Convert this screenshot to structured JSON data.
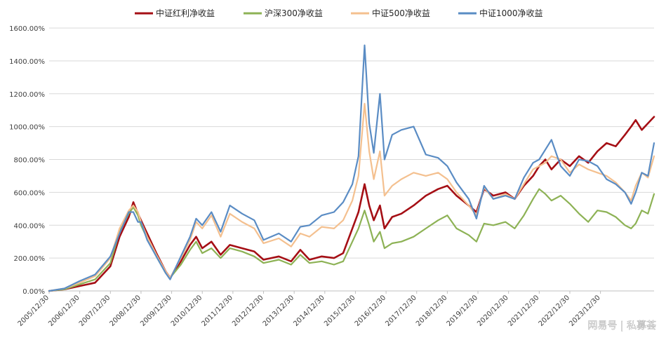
{
  "watermark": "网易号 | 私募荟",
  "chart_data": {
    "type": "line",
    "title": "",
    "xlabel": "",
    "ylabel": "",
    "ylim": [
      0,
      1600
    ],
    "y_ticks": [
      "0.00%",
      "200.00%",
      "400.00%",
      "600.00%",
      "800.00%",
      "1000.00%",
      "1200.00%",
      "1400.00%",
      "1600.00%"
    ],
    "y_values": [
      0,
      200,
      400,
      600,
      800,
      1000,
      1200,
      1400,
      1600
    ],
    "x_ticks": [
      "2005/12/30",
      "2006/12/30",
      "2007/12/30",
      "2008/12/30",
      "2009/12/30",
      "2010/12/30",
      "2011/12/30",
      "2012/12/30",
      "2013/12/30",
      "2014/12/30",
      "2015/12/30",
      "2016/12/30",
      "2017/12/30",
      "2018/12/30",
      "2019/12/30",
      "2020/12/30",
      "2021/12/30",
      "2022/12/30",
      "2023/12/30"
    ],
    "x_start": 2005.0,
    "x_end": 2024.75,
    "grid": true,
    "legend_position": "top",
    "series": [
      {
        "name": "中证红利净收益",
        "color": "#a50f15",
        "points": [
          [
            2005.0,
            0
          ],
          [
            2005.5,
            10
          ],
          [
            2006.0,
            30
          ],
          [
            2006.5,
            50
          ],
          [
            2007.0,
            150
          ],
          [
            2007.3,
            330
          ],
          [
            2007.6,
            450
          ],
          [
            2007.75,
            540
          ],
          [
            2007.9,
            470
          ],
          [
            2008.0,
            430
          ],
          [
            2008.2,
            350
          ],
          [
            2008.5,
            230
          ],
          [
            2008.8,
            120
          ],
          [
            2008.95,
            80
          ],
          [
            2009.3,
            180
          ],
          [
            2009.6,
            280
          ],
          [
            2009.8,
            330
          ],
          [
            2010.0,
            260
          ],
          [
            2010.3,
            300
          ],
          [
            2010.6,
            220
          ],
          [
            2010.9,
            280
          ],
          [
            2011.3,
            260
          ],
          [
            2011.7,
            240
          ],
          [
            2012.0,
            190
          ],
          [
            2012.5,
            210
          ],
          [
            2012.9,
            180
          ],
          [
            2013.2,
            250
          ],
          [
            2013.5,
            190
          ],
          [
            2013.9,
            210
          ],
          [
            2014.3,
            200
          ],
          [
            2014.6,
            230
          ],
          [
            2014.9,
            380
          ],
          [
            2015.1,
            480
          ],
          [
            2015.3,
            650
          ],
          [
            2015.45,
            520
          ],
          [
            2015.6,
            430
          ],
          [
            2015.8,
            520
          ],
          [
            2015.95,
            380
          ],
          [
            2016.2,
            450
          ],
          [
            2016.5,
            470
          ],
          [
            2016.9,
            520
          ],
          [
            2017.3,
            580
          ],
          [
            2017.7,
            620
          ],
          [
            2018.0,
            640
          ],
          [
            2018.3,
            580
          ],
          [
            2018.7,
            520
          ],
          [
            2018.95,
            480
          ],
          [
            2019.2,
            620
          ],
          [
            2019.5,
            580
          ],
          [
            2019.9,
            600
          ],
          [
            2020.2,
            560
          ],
          [
            2020.5,
            640
          ],
          [
            2020.8,
            700
          ],
          [
            2021.0,
            760
          ],
          [
            2021.2,
            800
          ],
          [
            2021.4,
            740
          ],
          [
            2021.7,
            800
          ],
          [
            2022.0,
            760
          ],
          [
            2022.3,
            820
          ],
          [
            2022.6,
            780
          ],
          [
            2022.9,
            850
          ],
          [
            2023.2,
            900
          ],
          [
            2023.5,
            880
          ],
          [
            2023.8,
            950
          ],
          [
            2024.0,
            1000
          ],
          [
            2024.15,
            1040
          ],
          [
            2024.35,
            980
          ],
          [
            2024.55,
            1020
          ],
          [
            2024.75,
            1060
          ]
        ]
      },
      {
        "name": "沪深300净收益",
        "color": "#8db255",
        "points": [
          [
            2005.0,
            0
          ],
          [
            2005.5,
            10
          ],
          [
            2006.0,
            40
          ],
          [
            2006.5,
            70
          ],
          [
            2007.0,
            170
          ],
          [
            2007.3,
            360
          ],
          [
            2007.6,
            470
          ],
          [
            2007.75,
            510
          ],
          [
            2007.9,
            460
          ],
          [
            2008.0,
            400
          ],
          [
            2008.2,
            320
          ],
          [
            2008.5,
            210
          ],
          [
            2008.8,
            110
          ],
          [
            2008.95,
            80
          ],
          [
            2009.3,
            160
          ],
          [
            2009.6,
            250
          ],
          [
            2009.8,
            300
          ],
          [
            2010.0,
            230
          ],
          [
            2010.3,
            260
          ],
          [
            2010.6,
            200
          ],
          [
            2010.9,
            260
          ],
          [
            2011.3,
            240
          ],
          [
            2011.7,
            210
          ],
          [
            2012.0,
            170
          ],
          [
            2012.5,
            190
          ],
          [
            2012.9,
            160
          ],
          [
            2013.2,
            220
          ],
          [
            2013.5,
            170
          ],
          [
            2013.9,
            180
          ],
          [
            2014.3,
            160
          ],
          [
            2014.6,
            180
          ],
          [
            2014.9,
            300
          ],
          [
            2015.1,
            380
          ],
          [
            2015.3,
            490
          ],
          [
            2015.45,
            400
          ],
          [
            2015.6,
            300
          ],
          [
            2015.8,
            360
          ],
          [
            2015.95,
            260
          ],
          [
            2016.2,
            290
          ],
          [
            2016.5,
            300
          ],
          [
            2016.9,
            330
          ],
          [
            2017.3,
            380
          ],
          [
            2017.7,
            430
          ],
          [
            2018.0,
            460
          ],
          [
            2018.3,
            380
          ],
          [
            2018.7,
            340
          ],
          [
            2018.95,
            300
          ],
          [
            2019.2,
            410
          ],
          [
            2019.5,
            400
          ],
          [
            2019.9,
            420
          ],
          [
            2020.2,
            380
          ],
          [
            2020.5,
            460
          ],
          [
            2020.8,
            560
          ],
          [
            2021.0,
            620
          ],
          [
            2021.2,
            590
          ],
          [
            2021.4,
            550
          ],
          [
            2021.7,
            580
          ],
          [
            2022.0,
            530
          ],
          [
            2022.3,
            470
          ],
          [
            2022.6,
            420
          ],
          [
            2022.9,
            490
          ],
          [
            2023.2,
            480
          ],
          [
            2023.5,
            450
          ],
          [
            2023.8,
            400
          ],
          [
            2024.0,
            380
          ],
          [
            2024.15,
            410
          ],
          [
            2024.35,
            490
          ],
          [
            2024.55,
            470
          ],
          [
            2024.75,
            590
          ]
        ]
      },
      {
        "name": "中证500净收益",
        "color": "#f4c08f",
        "points": [
          [
            2005.0,
            0
          ],
          [
            2005.5,
            15
          ],
          [
            2006.0,
            50
          ],
          [
            2006.5,
            90
          ],
          [
            2007.0,
            200
          ],
          [
            2007.3,
            380
          ],
          [
            2007.6,
            490
          ],
          [
            2007.75,
            520
          ],
          [
            2007.9,
            480
          ],
          [
            2008.0,
            420
          ],
          [
            2008.2,
            330
          ],
          [
            2008.5,
            220
          ],
          [
            2008.8,
            120
          ],
          [
            2008.95,
            80
          ],
          [
            2009.3,
            200
          ],
          [
            2009.6,
            310
          ],
          [
            2009.8,
            420
          ],
          [
            2010.0,
            380
          ],
          [
            2010.3,
            460
          ],
          [
            2010.6,
            330
          ],
          [
            2010.9,
            470
          ],
          [
            2011.3,
            420
          ],
          [
            2011.7,
            380
          ],
          [
            2012.0,
            290
          ],
          [
            2012.5,
            320
          ],
          [
            2012.9,
            270
          ],
          [
            2013.2,
            350
          ],
          [
            2013.5,
            330
          ],
          [
            2013.9,
            390
          ],
          [
            2014.3,
            380
          ],
          [
            2014.6,
            430
          ],
          [
            2014.9,
            550
          ],
          [
            2015.1,
            700
          ],
          [
            2015.3,
            1140
          ],
          [
            2015.45,
            850
          ],
          [
            2015.6,
            680
          ],
          [
            2015.8,
            850
          ],
          [
            2015.95,
            580
          ],
          [
            2016.2,
            640
          ],
          [
            2016.5,
            680
          ],
          [
            2016.9,
            720
          ],
          [
            2017.3,
            700
          ],
          [
            2017.7,
            720
          ],
          [
            2018.0,
            680
          ],
          [
            2018.3,
            600
          ],
          [
            2018.7,
            520
          ],
          [
            2018.95,
            460
          ],
          [
            2019.2,
            630
          ],
          [
            2019.5,
            560
          ],
          [
            2019.9,
            590
          ],
          [
            2020.2,
            560
          ],
          [
            2020.5,
            650
          ],
          [
            2020.8,
            740
          ],
          [
            2021.0,
            760
          ],
          [
            2021.2,
            780
          ],
          [
            2021.4,
            820
          ],
          [
            2021.7,
            800
          ],
          [
            2022.0,
            720
          ],
          [
            2022.3,
            770
          ],
          [
            2022.6,
            740
          ],
          [
            2022.9,
            720
          ],
          [
            2023.2,
            700
          ],
          [
            2023.5,
            660
          ],
          [
            2023.8,
            600
          ],
          [
            2024.0,
            550
          ],
          [
            2024.15,
            640
          ],
          [
            2024.35,
            720
          ],
          [
            2024.55,
            690
          ],
          [
            2024.75,
            820
          ]
        ]
      },
      {
        "name": "中证1000净收益",
        "color": "#5a8cc4",
        "points": [
          [
            2005.0,
            0
          ],
          [
            2005.5,
            15
          ],
          [
            2006.0,
            60
          ],
          [
            2006.5,
            100
          ],
          [
            2007.0,
            210
          ],
          [
            2007.3,
            350
          ],
          [
            2007.6,
            480
          ],
          [
            2007.75,
            480
          ],
          [
            2007.9,
            420
          ],
          [
            2008.0,
            420
          ],
          [
            2008.2,
            310
          ],
          [
            2008.5,
            210
          ],
          [
            2008.8,
            110
          ],
          [
            2008.95,
            70
          ],
          [
            2009.3,
            210
          ],
          [
            2009.6,
            330
          ],
          [
            2009.8,
            440
          ],
          [
            2010.0,
            400
          ],
          [
            2010.3,
            480
          ],
          [
            2010.6,
            360
          ],
          [
            2010.9,
            520
          ],
          [
            2011.3,
            470
          ],
          [
            2011.7,
            430
          ],
          [
            2012.0,
            310
          ],
          [
            2012.5,
            350
          ],
          [
            2012.9,
            300
          ],
          [
            2013.2,
            390
          ],
          [
            2013.5,
            400
          ],
          [
            2013.9,
            460
          ],
          [
            2014.3,
            480
          ],
          [
            2014.6,
            540
          ],
          [
            2014.9,
            650
          ],
          [
            2015.1,
            820
          ],
          [
            2015.3,
            1495
          ],
          [
            2015.45,
            1020
          ],
          [
            2015.6,
            840
          ],
          [
            2015.8,
            1200
          ],
          [
            2015.95,
            800
          ],
          [
            2016.2,
            950
          ],
          [
            2016.5,
            980
          ],
          [
            2016.9,
            1000
          ],
          [
            2017.3,
            830
          ],
          [
            2017.7,
            810
          ],
          [
            2018.0,
            760
          ],
          [
            2018.3,
            660
          ],
          [
            2018.7,
            560
          ],
          [
            2018.95,
            440
          ],
          [
            2019.2,
            640
          ],
          [
            2019.5,
            560
          ],
          [
            2019.9,
            580
          ],
          [
            2020.2,
            560
          ],
          [
            2020.5,
            690
          ],
          [
            2020.8,
            780
          ],
          [
            2021.0,
            800
          ],
          [
            2021.2,
            860
          ],
          [
            2021.4,
            920
          ],
          [
            2021.7,
            760
          ],
          [
            2022.0,
            700
          ],
          [
            2022.3,
            800
          ],
          [
            2022.6,
            790
          ],
          [
            2022.9,
            760
          ],
          [
            2023.2,
            680
          ],
          [
            2023.5,
            650
          ],
          [
            2023.8,
            600
          ],
          [
            2024.0,
            530
          ],
          [
            2024.15,
            600
          ],
          [
            2024.35,
            720
          ],
          [
            2024.55,
            700
          ],
          [
            2024.75,
            900
          ]
        ]
      }
    ]
  }
}
